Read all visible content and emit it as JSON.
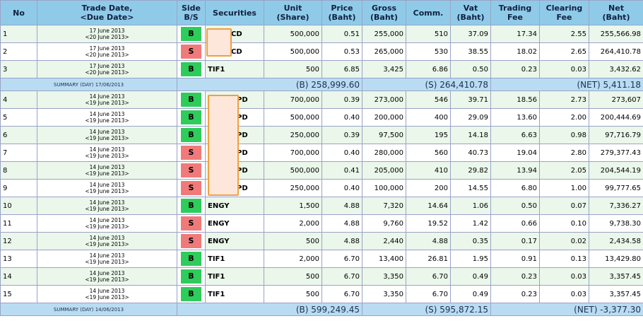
{
  "header": {
    "no": "No",
    "trade_date": "Trade Date,",
    "due_date": "<Due Date>",
    "side": "Side",
    "side2": "B/S",
    "securities": "Securities",
    "unit": "Unit",
    "unit2": "(Share)",
    "price": "Price",
    "price2": "(Baht)",
    "gross": "Gross",
    "gross2": "(Baht)",
    "comm": "Comm.",
    "vat": "Vat",
    "vat2": "(Baht)",
    "trading_fee": "Trading",
    "trading_fee2": "Fee",
    "clearing_fee": "Clearing",
    "clearing_fee2": "Fee",
    "net": "Net",
    "net2": "(Baht)"
  },
  "rows": [
    {
      "no": "1",
      "trade": "17 June 2013",
      "due": "<20 June 2013>",
      "side": "B",
      "sec": "CD",
      "unit": "500,000",
      "price": "0.51",
      "gross": "255,000",
      "comm": "510",
      "vat": "37.09",
      "tfee": "17.34",
      "cfee": "2.55",
      "net": "255,566.98"
    },
    {
      "no": "2",
      "trade": "17 June 2013",
      "due": "<20 June 2013>",
      "side": "S",
      "sec": "CD",
      "unit": "500,000",
      "price": "0.53",
      "gross": "265,000",
      "comm": "530",
      "vat": "38.55",
      "tfee": "18.02",
      "cfee": "2.65",
      "net": "264,410.78"
    },
    {
      "no": "3",
      "trade": "17 June 2013",
      "due": "<20 June 2013>",
      "side": "B",
      "sec": "TIF1",
      "unit": "500",
      "price": "6.85",
      "gross": "3,425",
      "comm": "6.86",
      "vat": "0.50",
      "tfee": "0.23",
      "cfee": "0.03",
      "net": "3,432.62"
    }
  ],
  "summary1": {
    "label": "SUMMARY (DAY) 17/06/2013",
    "buy": "(B) 258,999.60",
    "sell": "(S) 264,410.78",
    "net": "(NET) 5,411.18"
  },
  "rows2": [
    {
      "no": "4",
      "trade": "14 June 2013",
      "due": "<19 June 2013>",
      "side": "B",
      "sec": "PD",
      "unit": "700,000",
      "price": "0.39",
      "gross": "273,000",
      "comm": "546",
      "vat": "39.71",
      "tfee": "18.56",
      "cfee": "2.73",
      "net": "273,607"
    },
    {
      "no": "5",
      "trade": "14 June 2013",
      "due": "<19 June 2013>",
      "side": "B",
      "sec": "PD",
      "unit": "500,000",
      "price": "0.40",
      "gross": "200,000",
      "comm": "400",
      "vat": "29.09",
      "tfee": "13.60",
      "cfee": "2.00",
      "net": "200,444.69"
    },
    {
      "no": "6",
      "trade": "14 June 2013",
      "due": "<19 June 2013>",
      "side": "B",
      "sec": "PD",
      "unit": "250,000",
      "price": "0.39",
      "gross": "97,500",
      "comm": "195",
      "vat": "14.18",
      "tfee": "6.63",
      "cfee": "0.98",
      "net": "97,716.79"
    },
    {
      "no": "7",
      "trade": "14 June 2013",
      "due": "<19 June 2013>",
      "side": "S",
      "sec": "PD",
      "unit": "700,000",
      "price": "0.40",
      "gross": "280,000",
      "comm": "560",
      "vat": "40.73",
      "tfee": "19.04",
      "cfee": "2.80",
      "net": "279,377.43"
    },
    {
      "no": "8",
      "trade": "14 June 2013",
      "due": "<19 June 2013>",
      "side": "S",
      "sec": "PD",
      "unit": "500,000",
      "price": "0.41",
      "gross": "205,000",
      "comm": "410",
      "vat": "29.82",
      "tfee": "13.94",
      "cfee": "2.05",
      "net": "204,544.19"
    },
    {
      "no": "9",
      "trade": "14 June 2013",
      "due": "<19 June 2013>",
      "side": "S",
      "sec": "PD",
      "unit": "250,000",
      "price": "0.40",
      "gross": "100,000",
      "comm": "200",
      "vat": "14.55",
      "tfee": "6.80",
      "cfee": "1.00",
      "net": "99,777.65"
    },
    {
      "no": "10",
      "trade": "14 June 2013",
      "due": "<19 June 2013>",
      "side": "B",
      "sec": "ENGY",
      "unit": "1,500",
      "price": "4.88",
      "gross": "7,320",
      "comm": "14.64",
      "vat": "1.06",
      "tfee": "0.50",
      "cfee": "0.07",
      "net": "7,336.27"
    },
    {
      "no": "11",
      "trade": "14 June 2013",
      "due": "<19 June 2013>",
      "side": "S",
      "sec": "ENGY",
      "unit": "2,000",
      "price": "4.88",
      "gross": "9,760",
      "comm": "19.52",
      "vat": "1.42",
      "tfee": "0.66",
      "cfee": "0.10",
      "net": "9,738.30"
    },
    {
      "no": "12",
      "trade": "14 June 2013",
      "due": "<19 June 2013>",
      "side": "S",
      "sec": "ENGY",
      "unit": "500",
      "price": "4.88",
      "gross": "2,440",
      "comm": "4.88",
      "vat": "0.35",
      "tfee": "0.17",
      "cfee": "0.02",
      "net": "2,434.58"
    },
    {
      "no": "13",
      "trade": "14 June 2013",
      "due": "<19 June 2013>",
      "side": "B",
      "sec": "TIF1",
      "unit": "2,000",
      "price": "6.70",
      "gross": "13,400",
      "comm": "26.81",
      "vat": "1.95",
      "tfee": "0.91",
      "cfee": "0.13",
      "net": "13,429.80"
    },
    {
      "no": "14",
      "trade": "14 June 2013",
      "due": "<19 June 2013>",
      "side": "B",
      "sec": "TIF1",
      "unit": "500",
      "price": "6.70",
      "gross": "3,350",
      "comm": "6.70",
      "vat": "0.49",
      "tfee": "0.23",
      "cfee": "0.03",
      "net": "3,357.45"
    },
    {
      "no": "15",
      "trade": "14 June 2013",
      "due": "<19 June 2013>",
      "side": "B",
      "sec": "TIF1",
      "unit": "500",
      "price": "6.70",
      "gross": "3,350",
      "comm": "6.70",
      "vat": "0.49",
      "tfee": "0.23",
      "cfee": "0.03",
      "net": "3,357.45"
    }
  ],
  "summary2": {
    "label": "SUMMARY (DAY) 14/06/2013",
    "buy": "(B) 599,249.45",
    "sell": "(S) 595,872.15",
    "net": "(NET) -3,377.30"
  },
  "colors": {
    "header_bg": "#8fcbe8",
    "buy": "#2ecc5a",
    "sell": "#f07a7a",
    "summary_bg": "#b9dcf3",
    "redaction_fill": "#fde6da",
    "redaction_border": "#f0a040"
  }
}
